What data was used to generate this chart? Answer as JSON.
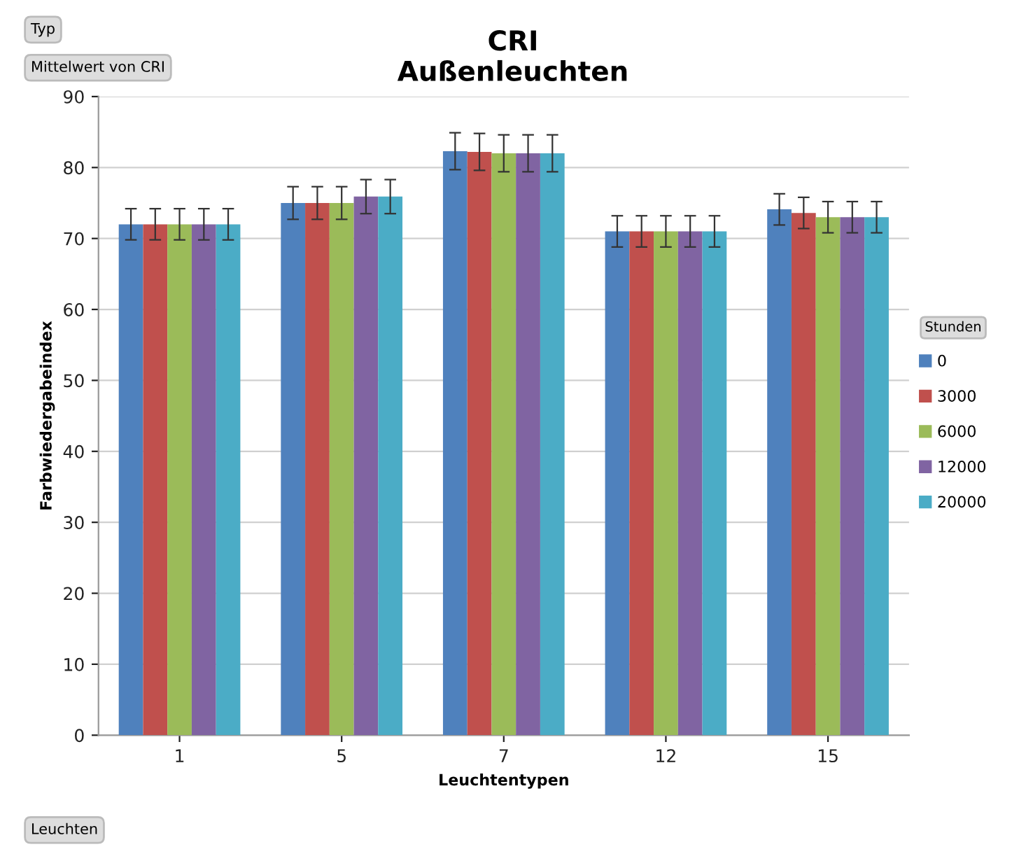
{
  "chart_data": {
    "type": "bar",
    "title": "CRI\nAußenleuchten",
    "xlabel": "Leuchtentypen",
    "ylabel": "Farbwiedergabeindex",
    "legend_title": "Stunden",
    "annotations": [
      "Typ",
      "Mittelwert von CRI",
      "Leuchten"
    ],
    "categories": [
      "1",
      "5",
      "7",
      "12",
      "15"
    ],
    "series": [
      {
        "name": "0",
        "color": "#4f81bd",
        "values": [
          72,
          75,
          82.3,
          71,
          74.1
        ],
        "errors": [
          2.2,
          2.3,
          2.6,
          2.2,
          2.2
        ]
      },
      {
        "name": "3000",
        "color": "#c0504d",
        "values": [
          72,
          75,
          82.2,
          71,
          73.6
        ],
        "errors": [
          2.2,
          2.3,
          2.6,
          2.2,
          2.2
        ]
      },
      {
        "name": "6000",
        "color": "#9bbb59",
        "values": [
          72,
          75,
          82,
          71,
          73
        ],
        "errors": [
          2.2,
          2.3,
          2.6,
          2.2,
          2.2
        ]
      },
      {
        "name": "12000",
        "color": "#8064a2",
        "values": [
          72,
          75.9,
          82,
          71,
          73
        ],
        "errors": [
          2.2,
          2.4,
          2.6,
          2.2,
          2.2
        ]
      },
      {
        "name": "20000",
        "color": "#4bacc6",
        "values": [
          72,
          75.9,
          82,
          71,
          73
        ],
        "errors": [
          2.2,
          2.4,
          2.6,
          2.2,
          2.2
        ]
      }
    ],
    "ylim": [
      0,
      90
    ],
    "yticks": [
      0,
      10,
      20,
      30,
      40,
      50,
      60,
      70,
      80,
      90
    ],
    "grid": "y",
    "legend": "right"
  }
}
